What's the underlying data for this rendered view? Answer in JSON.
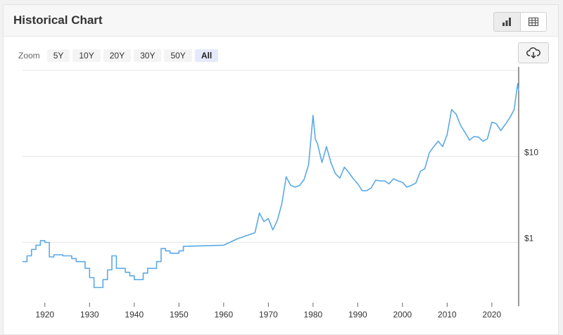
{
  "header": {
    "title": "Historical Chart",
    "views": [
      "chart-icon",
      "table-icon"
    ]
  },
  "zoom": {
    "label": "Zoom",
    "options": [
      "5Y",
      "10Y",
      "20Y",
      "30Y",
      "50Y",
      "All"
    ],
    "selected": "All"
  },
  "icons": {
    "download": "cloud-download-icon"
  },
  "colors": {
    "line": "#5aa9e6",
    "grid": "#e6e6e6",
    "active_zoom": "#e6e9fb"
  },
  "chart_data": {
    "type": "line",
    "title": "",
    "xlabel": "",
    "ylabel": "",
    "y_scale": "log",
    "xlim": [
      1915,
      2026
    ],
    "ylim": [
      0.2,
      100
    ],
    "x_ticks": [
      1920,
      1930,
      1940,
      1950,
      1960,
      1970,
      1980,
      1990,
      2000,
      2010,
      2020
    ],
    "y_ticks": [
      {
        "value": 1,
        "label": "$1"
      },
      {
        "value": 10,
        "label": "$10"
      }
    ],
    "grid": true,
    "legend": "none",
    "series": [
      {
        "values": [
          [
            1915,
            0.6
          ],
          [
            1916,
            0.6
          ],
          [
            1916,
            0.7
          ],
          [
            1917,
            0.7
          ],
          [
            1917,
            0.83
          ],
          [
            1918,
            0.83
          ],
          [
            1918,
            0.93
          ],
          [
            1919,
            0.93
          ],
          [
            1919,
            1.05
          ],
          [
            1920,
            1.05
          ],
          [
            1920,
            1.0
          ],
          [
            1921,
            1.0
          ],
          [
            1921,
            0.68
          ],
          [
            1922,
            0.68
          ],
          [
            1922,
            0.72
          ],
          [
            1924,
            0.72
          ],
          [
            1924,
            0.7
          ],
          [
            1926,
            0.7
          ],
          [
            1926,
            0.65
          ],
          [
            1927,
            0.65
          ],
          [
            1927,
            0.6
          ],
          [
            1929,
            0.6
          ],
          [
            1929,
            0.5
          ],
          [
            1930,
            0.5
          ],
          [
            1930,
            0.39
          ],
          [
            1931,
            0.39
          ],
          [
            1931,
            0.3
          ],
          [
            1933,
            0.3
          ],
          [
            1933,
            0.37
          ],
          [
            1934,
            0.37
          ],
          [
            1934,
            0.48
          ],
          [
            1935,
            0.48
          ],
          [
            1935,
            0.7
          ],
          [
            1936,
            0.7
          ],
          [
            1936,
            0.5
          ],
          [
            1938,
            0.5
          ],
          [
            1938,
            0.45
          ],
          [
            1939,
            0.45
          ],
          [
            1939,
            0.41
          ],
          [
            1940,
            0.41
          ],
          [
            1940,
            0.37
          ],
          [
            1942,
            0.37
          ],
          [
            1942,
            0.44
          ],
          [
            1943,
            0.44
          ],
          [
            1943,
            0.5
          ],
          [
            1945,
            0.5
          ],
          [
            1945,
            0.6
          ],
          [
            1946,
            0.6
          ],
          [
            1946,
            0.85
          ],
          [
            1947,
            0.85
          ],
          [
            1947,
            0.8
          ],
          [
            1948,
            0.8
          ],
          [
            1948,
            0.75
          ],
          [
            1950,
            0.75
          ],
          [
            1950,
            0.8
          ],
          [
            1951,
            0.8
          ],
          [
            1951,
            0.9
          ],
          [
            1960,
            0.93
          ],
          [
            1963,
            1.1
          ],
          [
            1967,
            1.3
          ],
          [
            1968,
            2.2
          ],
          [
            1969,
            1.75
          ],
          [
            1970,
            1.9
          ],
          [
            1971,
            1.4
          ],
          [
            1972,
            1.8
          ],
          [
            1973,
            2.8
          ],
          [
            1974,
            5.8
          ],
          [
            1975,
            4.6
          ],
          [
            1976,
            4.4
          ],
          [
            1977,
            4.6
          ],
          [
            1978,
            5.4
          ],
          [
            1979,
            8.0
          ],
          [
            1980,
            30.0
          ],
          [
            1980.5,
            16.0
          ],
          [
            1981,
            14.0
          ],
          [
            1982,
            8.5
          ],
          [
            1983,
            13.0
          ],
          [
            1984,
            8.5
          ],
          [
            1985,
            6.3
          ],
          [
            1986,
            5.6
          ],
          [
            1987,
            7.5
          ],
          [
            1988,
            6.5
          ],
          [
            1989,
            5.5
          ],
          [
            1990,
            4.8
          ],
          [
            1991,
            4.0
          ],
          [
            1992,
            4.0
          ],
          [
            1993,
            4.3
          ],
          [
            1994,
            5.3
          ],
          [
            1995,
            5.2
          ],
          [
            1996,
            5.2
          ],
          [
            1997,
            4.8
          ],
          [
            1998,
            5.5
          ],
          [
            1999,
            5.2
          ],
          [
            2000,
            5.0
          ],
          [
            2001,
            4.4
          ],
          [
            2002,
            4.6
          ],
          [
            2003,
            4.9
          ],
          [
            2004,
            6.7
          ],
          [
            2005,
            7.2
          ],
          [
            2006,
            11.0
          ],
          [
            2007,
            13.0
          ],
          [
            2008,
            15.0
          ],
          [
            2009,
            13.0
          ],
          [
            2010,
            18.0
          ],
          [
            2011,
            35.0
          ],
          [
            2012,
            31.0
          ],
          [
            2013,
            23.0
          ],
          [
            2014,
            19.0
          ],
          [
            2015,
            15.5
          ],
          [
            2016,
            17.0
          ],
          [
            2017,
            16.8
          ],
          [
            2018,
            15.0
          ],
          [
            2019,
            16.0
          ],
          [
            2020,
            25.0
          ],
          [
            2021,
            24.0
          ],
          [
            2022,
            20.0
          ],
          [
            2023,
            23.5
          ],
          [
            2024,
            28.0
          ],
          [
            2025,
            35.0
          ],
          [
            2025.5,
            55.0
          ],
          [
            2025.8,
            70.0
          ],
          [
            2026,
            58.0
          ]
        ]
      }
    ]
  }
}
